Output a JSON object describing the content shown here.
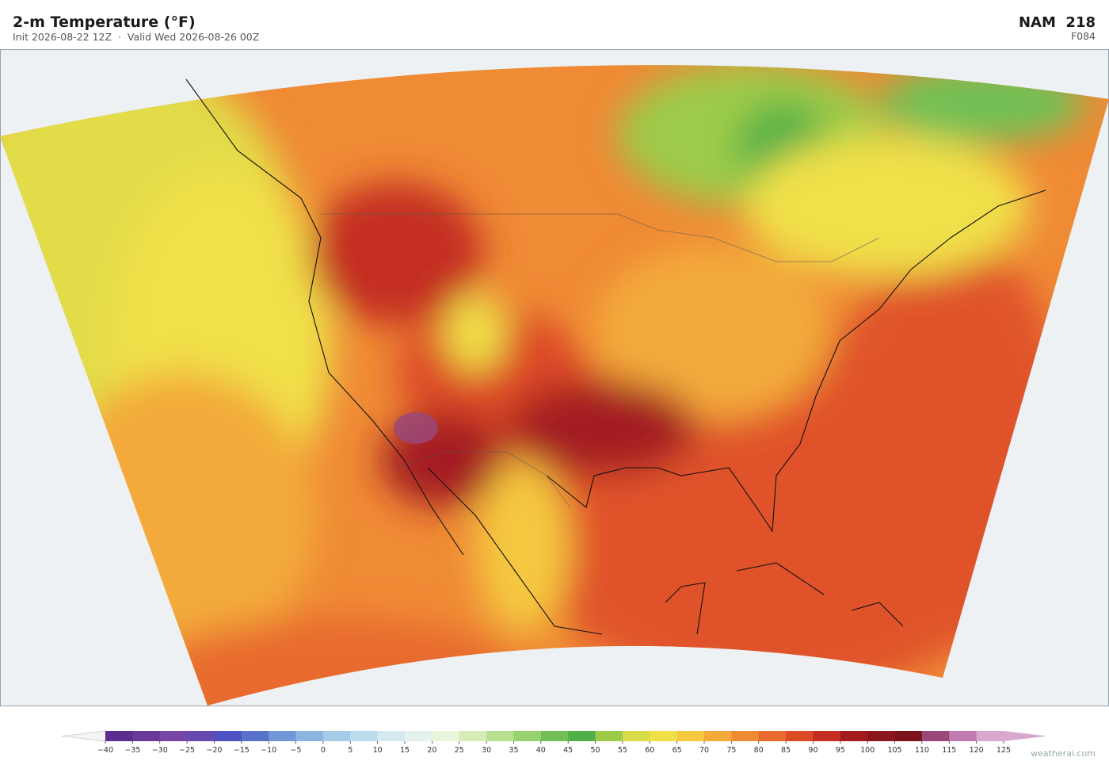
{
  "header": {
    "title": "2-m Temperature  (°F)",
    "subtitle": "Init 2026-08-22 12Z  ·  Valid Wed 2026-08-26 00Z",
    "model": "NAM  218",
    "forecast_hour": "F084"
  },
  "colorbar": {
    "ticks": [
      {
        "value": -40,
        "label": "−40"
      },
      {
        "value": -35,
        "label": "−35"
      },
      {
        "value": -30,
        "label": "−30"
      },
      {
        "value": -25,
        "label": "−25"
      },
      {
        "value": -20,
        "label": "−20"
      },
      {
        "value": -15,
        "label": "−15"
      },
      {
        "value": -10,
        "label": "−10"
      },
      {
        "value": -5,
        "label": "−5"
      },
      0,
      5,
      10,
      15,
      20,
      25,
      30,
      35,
      40,
      45,
      50,
      55,
      60,
      65,
      70,
      75,
      80,
      85,
      90,
      95,
      100,
      105,
      110,
      115,
      120,
      125
    ],
    "colors": [
      "#5b2d8e",
      "#6a3a9a",
      "#7546a6",
      "#6649b0",
      "#4f52c0",
      "#5872cc",
      "#7098d6",
      "#8ab5e0",
      "#a6cbe8",
      "#bcdcee",
      "#d4eaf2",
      "#e4f2ee",
      "#eaf5dc",
      "#d6edb8",
      "#b8e08e",
      "#98d270",
      "#72c055",
      "#50b048",
      "#9ccb48",
      "#d8dc48",
      "#f0e048",
      "#f5c840",
      "#f3aa3a",
      "#ef8a35",
      "#e86a2e",
      "#dc4a26",
      "#c42e22",
      "#a41c20",
      "#8a161e",
      "#7c141c",
      "#9a4878",
      "#c07ab0",
      "#d8a8d0"
    ],
    "under_color": "#f4f4f4",
    "over_color": "#d8a8d0"
  },
  "watermark": "weatherai.com"
}
